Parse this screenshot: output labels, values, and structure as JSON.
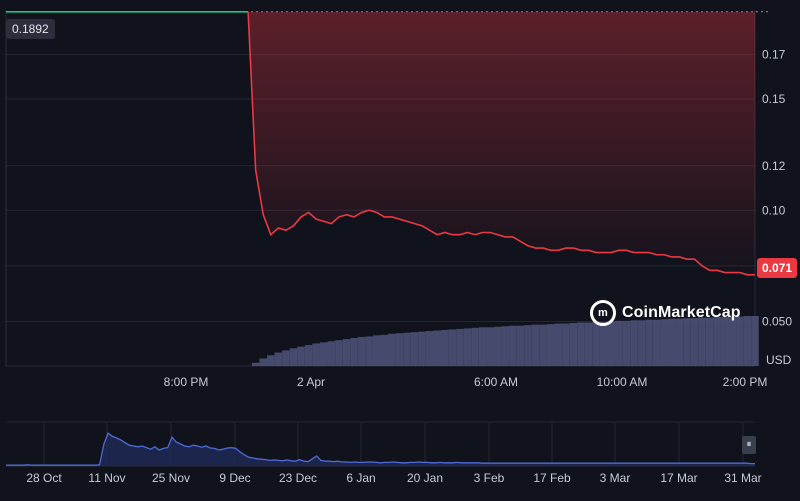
{
  "chart_data": [
    {
      "type": "area",
      "title": "",
      "unit": "USD",
      "x_ticks": [
        "8:00 PM",
        "2 Apr",
        "6:00 AM",
        "10:00 AM",
        "2:00 PM"
      ],
      "y_ticks": [
        "0.17",
        "0.15",
        "0.12",
        "0.10",
        "0.050"
      ],
      "ylim": [
        0.03,
        0.19
      ],
      "open_price": "0.1892",
      "last_price": "0.071",
      "series": [
        {
          "values": [
            0.1892,
            0.1892,
            0.1892,
            0.1892,
            0.1892,
            0.1892,
            0.1892,
            0.1892,
            0.1892,
            0.1892,
            0.1892,
            0.1892,
            0.1892,
            0.1892,
            0.1892,
            0.1892,
            0.1892,
            0.1892,
            0.1892,
            0.1892,
            0.1892,
            0.1892,
            0.1892,
            0.1892,
            0.1892,
            0.1892,
            0.1892,
            0.1892,
            0.1892,
            0.1892,
            0.1892,
            0.1892,
            0.1892,
            0.118,
            0.098,
            0.089,
            0.092,
            0.091,
            0.093,
            0.097,
            0.099,
            0.096,
            0.095,
            0.094,
            0.097,
            0.098,
            0.097,
            0.099,
            0.1,
            0.099,
            0.097,
            0.097,
            0.096,
            0.095,
            0.094,
            0.093,
            0.091,
            0.089,
            0.09,
            0.089,
            0.089,
            0.09,
            0.089,
            0.09,
            0.09,
            0.089,
            0.088,
            0.088,
            0.086,
            0.084,
            0.083,
            0.083,
            0.082,
            0.082,
            0.083,
            0.083,
            0.082,
            0.082,
            0.081,
            0.081,
            0.081,
            0.082,
            0.082,
            0.081,
            0.081,
            0.081,
            0.08,
            0.08,
            0.079,
            0.079,
            0.078,
            0.078,
            0.075,
            0.073,
            0.073,
            0.072,
            0.072,
            0.072,
            0.071,
            0.071
          ]
        }
      ],
      "volume": {
        "values": [
          0,
          0,
          0,
          0,
          0,
          0,
          0,
          0,
          0,
          0,
          0,
          0,
          0,
          0,
          0,
          0,
          0,
          0,
          0,
          0,
          0,
          0,
          0,
          0,
          0,
          0,
          0,
          0,
          0,
          0,
          0,
          0,
          0,
          0.06,
          0.14,
          0.2,
          0.25,
          0.29,
          0.33,
          0.36,
          0.39,
          0.42,
          0.44,
          0.46,
          0.48,
          0.5,
          0.52,
          0.54,
          0.55,
          0.57,
          0.58,
          0.6,
          0.61,
          0.62,
          0.63,
          0.64,
          0.65,
          0.66,
          0.67,
          0.68,
          0.69,
          0.7,
          0.71,
          0.72,
          0.72,
          0.73,
          0.74,
          0.75,
          0.75,
          0.76,
          0.77,
          0.77,
          0.78,
          0.79,
          0.79,
          0.8,
          0.81,
          0.81,
          0.82,
          0.82,
          0.83,
          0.84,
          0.84,
          0.85,
          0.85,
          0.86,
          0.86,
          0.87,
          0.88,
          0.88,
          0.89,
          0.89,
          0.9,
          0.9,
          0.91,
          0.91,
          0.92,
          0.92,
          0.93,
          0.93
        ]
      },
      "colors": {
        "up": "#16c784",
        "down": "#ea3943",
        "volume": "#4c5175"
      }
    },
    {
      "type": "area",
      "title": "",
      "x_ticks": [
        "28 Oct",
        "11 Nov",
        "25 Nov",
        "9 Dec",
        "23 Dec",
        "6 Jan",
        "20 Jan",
        "3 Feb",
        "17 Feb",
        "3 Mar",
        "17 Mar",
        "31 Mar"
      ],
      "series": [
        {
          "values": [
            0.02,
            0.02,
            0.02,
            0.02,
            0.02,
            0.03,
            0.02,
            0.02,
            0.02,
            0.02,
            0.02,
            0.02,
            0.02,
            0.02,
            0.02,
            0.02,
            0.02,
            0.02,
            0.02,
            0.02,
            0.02,
            0.02,
            0.03,
            0.55,
            0.82,
            0.74,
            0.7,
            0.65,
            0.58,
            0.52,
            0.5,
            0.48,
            0.5,
            0.46,
            0.42,
            0.48,
            0.4,
            0.44,
            0.46,
            0.72,
            0.6,
            0.55,
            0.5,
            0.48,
            0.52,
            0.5,
            0.47,
            0.5,
            0.45,
            0.44,
            0.4,
            0.42,
            0.45,
            0.46,
            0.44,
            0.35,
            0.28,
            0.22,
            0.2,
            0.18,
            0.17,
            0.16,
            0.14,
            0.15,
            0.14,
            0.13,
            0.15,
            0.13,
            0.12,
            0.16,
            0.12,
            0.11,
            0.18,
            0.25,
            0.14,
            0.12,
            0.12,
            0.11,
            0.12,
            0.1,
            0.1,
            0.09,
            0.1,
            0.09,
            0.09,
            0.1,
            0.1,
            0.09,
            0.08,
            0.09,
            0.09,
            0.1,
            0.09,
            0.08,
            0.08,
            0.09,
            0.09,
            0.1,
            0.09,
            0.09,
            0.08,
            0.08,
            0.09,
            0.08,
            0.08,
            0.08,
            0.09,
            0.08,
            0.08,
            0.08,
            0.08,
            0.08,
            0.07,
            0.07,
            0.07,
            0.07,
            0.07,
            0.07,
            0.07,
            0.07,
            0.07,
            0.07,
            0.07,
            0.07,
            0.07,
            0.07,
            0.07,
            0.07,
            0.07,
            0.07,
            0.07,
            0.07,
            0.07,
            0.07,
            0.07,
            0.07,
            0.07,
            0.07,
            0.07,
            0.07,
            0.07,
            0.07,
            0.07,
            0.07,
            0.07,
            0.07,
            0.07,
            0.07,
            0.07,
            0.07,
            0.07,
            0.07,
            0.07,
            0.07,
            0.07,
            0.07,
            0.07,
            0.07,
            0.07,
            0.07,
            0.07,
            0.07,
            0.07,
            0.07,
            0.07,
            0.07,
            0.07,
            0.07,
            0.07,
            0.07,
            0.07,
            0.07,
            0.07,
            0.07,
            0.07,
            0.06,
            0.06
          ]
        }
      ],
      "colors": {
        "line": "#4f6bd8",
        "fill": "#1f2a55"
      }
    }
  ],
  "branding": {
    "name": "CoinMarketCap",
    "logo_glyph": "m"
  },
  "controls": {
    "pause_glyph": "⏸"
  }
}
